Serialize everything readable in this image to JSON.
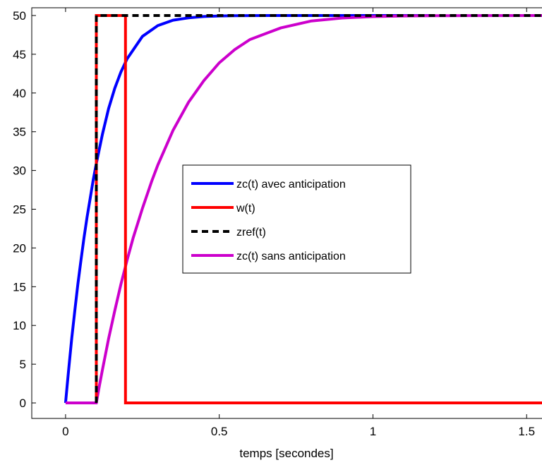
{
  "chart_data": {
    "type": "line",
    "title": "",
    "xlabel": "temps [secondes]",
    "ylabel": "",
    "xlim": [
      -0.11,
      1.55
    ],
    "ylim": [
      -2,
      51
    ],
    "xticks": [
      0,
      0.5,
      1,
      1.5
    ],
    "xtick_labels": [
      "0",
      "0.5",
      "1",
      "1.5"
    ],
    "yticks": [
      0,
      5,
      10,
      15,
      20,
      25,
      30,
      35,
      40,
      45,
      50
    ],
    "ytick_labels": [
      "0",
      "5",
      "10",
      "15",
      "20",
      "25",
      "30",
      "35",
      "40",
      "45",
      "50"
    ],
    "grid": false,
    "legend_position": "center",
    "series": [
      {
        "name": "zc(t) avec anticipation",
        "color": "#0000ff",
        "style": "solid",
        "x": [
          0,
          0.005,
          0.01,
          0.02,
          0.03,
          0.04,
          0.05,
          0.06,
          0.07,
          0.08,
          0.09,
          0.1,
          0.12,
          0.14,
          0.16,
          0.18,
          0.2,
          0.25,
          0.3,
          0.35,
          0.4,
          0.45,
          0.5,
          0.55,
          0.6,
          0.7,
          0.8,
          0.9,
          1.0,
          1.1,
          1.2
        ],
        "y": [
          0,
          2.2,
          4.3,
          8.3,
          11.9,
          15.3,
          18.4,
          21.3,
          24.0,
          26.4,
          28.8,
          30.9,
          34.7,
          38.0,
          40.6,
          42.7,
          44.4,
          47.3,
          48.7,
          49.4,
          49.7,
          49.87,
          49.94,
          49.97,
          49.99,
          50,
          50,
          50,
          50,
          50,
          50
        ]
      },
      {
        "name": "w(t)",
        "color": "#ff0000",
        "style": "solid",
        "x": [
          0.1,
          0.1,
          0.195,
          0.195,
          1.55
        ],
        "y": [
          0,
          50,
          50,
          0,
          0
        ]
      },
      {
        "name": "zref(t)",
        "color": "#000000",
        "style": "dashed",
        "x": [
          0.1,
          0.1,
          1.55
        ],
        "y": [
          0,
          50,
          50
        ]
      },
      {
        "name": "zc(t) sans anticipation",
        "color": "#cc00cc",
        "style": "solid",
        "x": [
          0,
          0.1,
          0.11,
          0.12,
          0.14,
          0.16,
          0.18,
          0.2,
          0.22,
          0.25,
          0.28,
          0.3,
          0.35,
          0.4,
          0.45,
          0.5,
          0.55,
          0.6,
          0.7,
          0.8,
          0.9,
          1.0,
          1.1,
          1.2,
          1.3,
          1.55
        ],
        "y": [
          0,
          0,
          2.2,
          4.3,
          8.3,
          11.9,
          15.3,
          18.4,
          21.3,
          25.1,
          28.6,
          30.7,
          35.2,
          38.8,
          41.6,
          43.9,
          45.6,
          46.9,
          48.4,
          49.3,
          49.68,
          49.86,
          49.94,
          49.97,
          49.99,
          50
        ]
      }
    ]
  }
}
